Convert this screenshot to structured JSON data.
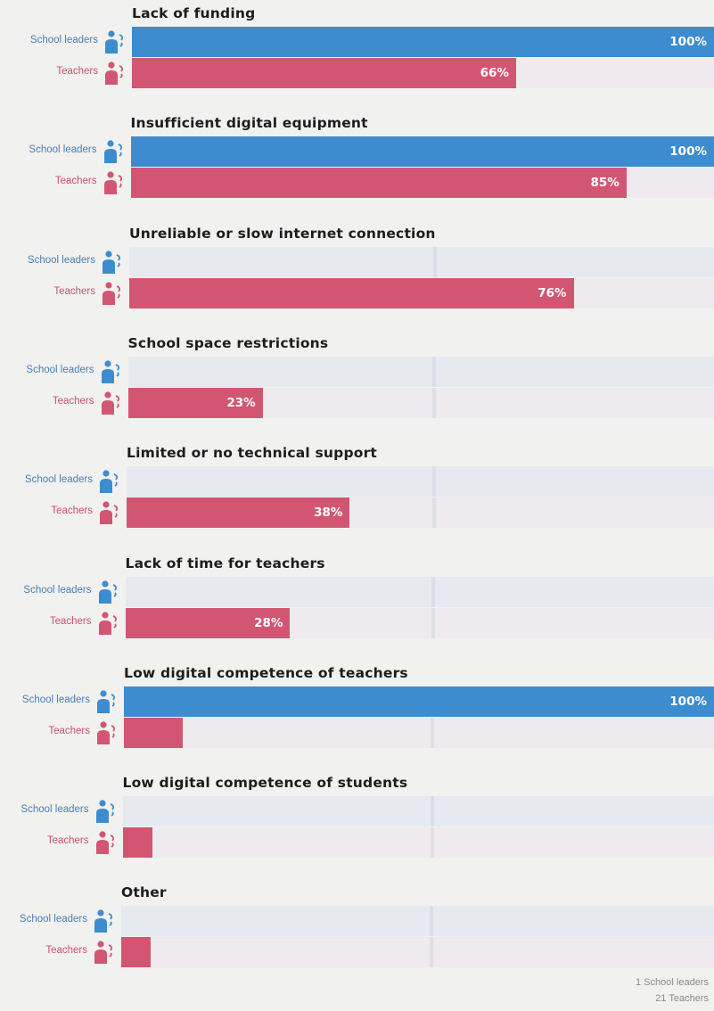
{
  "chart_data": {
    "type": "bar",
    "orientation": "horizontal",
    "series": [
      {
        "name": "School leaders",
        "color": "#3d8ccf",
        "icon": "school-leader-person-icon",
        "values": [
          100,
          100,
          0,
          0,
          0,
          0,
          100,
          0,
          0
        ]
      },
      {
        "name": "Teachers",
        "color": "#d25672",
        "icon": "teacher-person-icon",
        "values": [
          66,
          85,
          76,
          23,
          38,
          28,
          10,
          5,
          5
        ]
      }
    ],
    "categories": [
      "Lack of funding",
      "Insufficient digital equipment",
      "Unreliable or slow internet connection",
      "School space restrictions",
      "Limited or no technical support",
      "Lack of time for teachers",
      "Low digital competence of teachers",
      "Low digital competence of students",
      "Other"
    ],
    "value_labels": [
      [
        "100%",
        "66%"
      ],
      [
        "100%",
        "85%"
      ],
      [
        "",
        "76%"
      ],
      [
        "",
        "23%"
      ],
      [
        "",
        "38%"
      ],
      [
        "",
        "28%"
      ],
      [
        "100%",
        ""
      ],
      [
        "",
        ""
      ],
      [
        "",
        ""
      ]
    ],
    "xlim": [
      0,
      100
    ],
    "grid": true
  },
  "footnotes": [
    "1 School leaders",
    "21 Teachers"
  ]
}
